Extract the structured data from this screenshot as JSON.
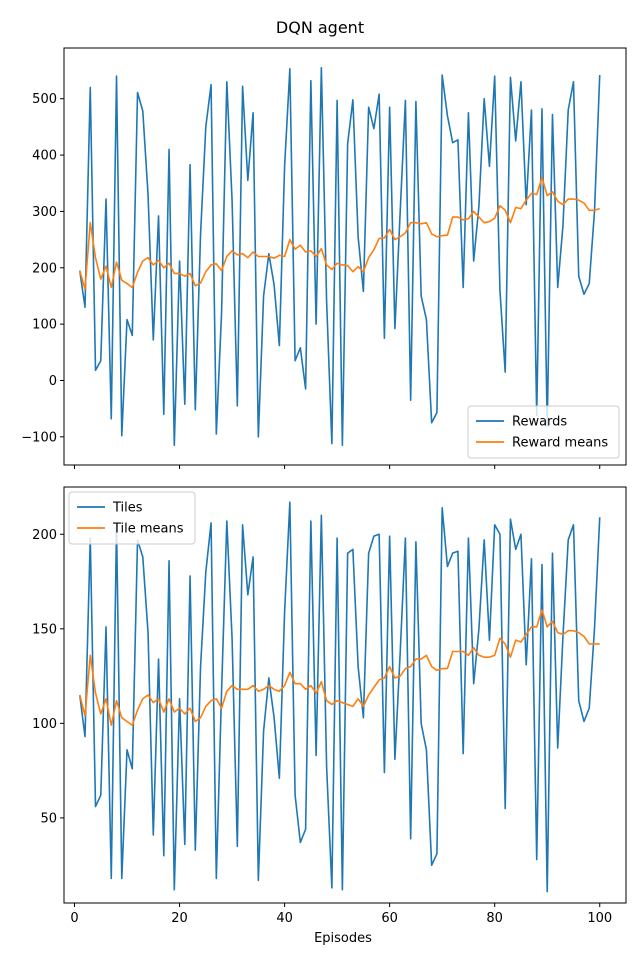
{
  "title": "DQN agent",
  "xlabel": "Episodes",
  "colors": {
    "series1": "#1f77b4",
    "series2": "#ff7f0e"
  },
  "chart_data": [
    {
      "type": "line",
      "xlim": [
        -2,
        105
      ],
      "ylim": [
        -150,
        590
      ],
      "xticks": [
        0,
        20,
        40,
        60,
        80,
        100
      ],
      "yticks": [
        -100,
        0,
        100,
        200,
        300,
        400,
        500
      ],
      "show_xtick_labels": false,
      "legend_position": "lower-right",
      "series": [
        {
          "name": "Rewards",
          "x": [
            1,
            2,
            3,
            4,
            5,
            6,
            7,
            8,
            9,
            10,
            11,
            12,
            13,
            14,
            15,
            16,
            17,
            18,
            19,
            20,
            21,
            22,
            23,
            24,
            25,
            26,
            27,
            28,
            29,
            30,
            31,
            32,
            33,
            34,
            35,
            36,
            37,
            38,
            39,
            40,
            41,
            42,
            43,
            44,
            45,
            46,
            47,
            48,
            49,
            50,
            51,
            52,
            53,
            54,
            55,
            56,
            57,
            58,
            59,
            60,
            61,
            62,
            63,
            64,
            65,
            66,
            67,
            68,
            69,
            70,
            71,
            72,
            73,
            74,
            75,
            76,
            77,
            78,
            79,
            80,
            81,
            82,
            83,
            84,
            85,
            86,
            87,
            88,
            89,
            90,
            91,
            92,
            93,
            94,
            95,
            96,
            97,
            98,
            99,
            100
          ],
          "values": [
            195,
            130,
            520,
            18,
            35,
            322,
            -68,
            540,
            -98,
            108,
            80,
            511,
            478,
            330,
            72,
            292,
            -60,
            410,
            -115,
            212,
            -42,
            383,
            -52,
            260,
            450,
            525,
            -95,
            120,
            530,
            320,
            -45,
            522,
            355,
            475,
            -100,
            150,
            225,
            170,
            62,
            380,
            553,
            35,
            58,
            -15,
            532,
            100,
            555,
            140,
            -112,
            497,
            -115,
            420,
            498,
            255,
            158,
            485,
            447,
            508,
            75,
            485,
            92,
            298,
            497,
            -35,
            495,
            150,
            108,
            -75,
            -57,
            542,
            470,
            422,
            427,
            165,
            475,
            212,
            310,
            500,
            380,
            540,
            160,
            15,
            538,
            425,
            530,
            312,
            480,
            -62,
            482,
            -82,
            472,
            165,
            275,
            480,
            530,
            185,
            153,
            172,
            300,
            542
          ]
        },
        {
          "name": "Reward means",
          "x": [
            1,
            2,
            3,
            4,
            5,
            6,
            7,
            8,
            9,
            10,
            11,
            12,
            13,
            14,
            15,
            16,
            17,
            18,
            19,
            20,
            21,
            22,
            23,
            24,
            25,
            26,
            27,
            28,
            29,
            30,
            31,
            32,
            33,
            34,
            35,
            36,
            37,
            38,
            39,
            40,
            41,
            42,
            43,
            44,
            45,
            46,
            47,
            48,
            49,
            50,
            51,
            52,
            53,
            54,
            55,
            56,
            57,
            58,
            59,
            60,
            61,
            62,
            63,
            64,
            65,
            66,
            67,
            68,
            69,
            70,
            71,
            72,
            73,
            74,
            75,
            76,
            77,
            78,
            79,
            80,
            81,
            82,
            83,
            84,
            85,
            86,
            87,
            88,
            89,
            90,
            91,
            92,
            93,
            94,
            95,
            96,
            97,
            98,
            99,
            100
          ],
          "values": [
            195,
            162,
            280,
            218,
            180,
            203,
            165,
            210,
            178,
            172,
            165,
            192,
            212,
            218,
            205,
            213,
            200,
            208,
            190,
            190,
            185,
            190,
            168,
            173,
            193,
            205,
            207,
            195,
            220,
            230,
            223,
            225,
            218,
            228,
            220,
            220,
            220,
            217,
            222,
            220,
            250,
            233,
            240,
            228,
            230,
            220,
            234,
            205,
            197,
            208,
            205,
            204,
            193,
            202,
            193,
            218,
            232,
            252,
            253,
            268,
            250,
            255,
            262,
            280,
            280,
            278,
            280,
            260,
            255,
            257,
            258,
            290,
            290,
            285,
            287,
            300,
            290,
            280,
            282,
            288,
            310,
            302,
            280,
            307,
            305,
            320,
            332,
            330,
            360,
            328,
            335,
            318,
            312,
            322,
            322,
            320,
            315,
            302,
            302,
            305
          ]
        }
      ]
    },
    {
      "type": "line",
      "xlim": [
        -2,
        105
      ],
      "ylim": [
        5,
        225
      ],
      "xticks": [
        0,
        20,
        40,
        60,
        80,
        100
      ],
      "yticks": [
        50,
        100,
        150,
        200
      ],
      "show_xtick_labels": true,
      "legend_position": "upper-left",
      "series": [
        {
          "name": "Tiles",
          "x": [
            1,
            2,
            3,
            4,
            5,
            6,
            7,
            8,
            9,
            10,
            11,
            12,
            13,
            14,
            15,
            16,
            17,
            18,
            19,
            20,
            21,
            22,
            23,
            24,
            25,
            26,
            27,
            28,
            29,
            30,
            31,
            32,
            33,
            34,
            35,
            36,
            37,
            38,
            39,
            40,
            41,
            42,
            43,
            44,
            45,
            46,
            47,
            48,
            49,
            50,
            51,
            52,
            53,
            54,
            55,
            56,
            57,
            58,
            59,
            60,
            61,
            62,
            63,
            64,
            65,
            66,
            67,
            68,
            69,
            70,
            71,
            72,
            73,
            74,
            75,
            76,
            77,
            78,
            79,
            80,
            81,
            82,
            83,
            84,
            85,
            86,
            87,
            88,
            89,
            90,
            91,
            92,
            93,
            94,
            95,
            96,
            97,
            98,
            99,
            100
          ],
          "values": [
            115,
            93,
            198,
            56,
            62,
            151,
            18,
            205,
            18,
            86,
            76,
            197,
            188,
            148,
            41,
            134,
            30,
            186,
            12,
            113,
            36,
            178,
            33,
            130,
            180,
            206,
            18,
            117,
            207,
            145,
            35,
            205,
            168,
            188,
            17,
            96,
            124,
            103,
            71,
            159,
            217,
            62,
            37,
            44,
            207,
            83,
            210,
            77,
            13,
            198,
            12,
            190,
            192,
            130,
            103,
            190,
            199,
            200,
            74,
            199,
            81,
            137,
            198,
            39,
            196,
            100,
            86,
            25,
            31,
            214,
            183,
            190,
            191,
            84,
            198,
            121,
            150,
            197,
            144,
            205,
            200,
            55,
            208,
            192,
            200,
            131,
            187,
            28,
            184,
            11,
            190,
            87,
            146,
            197,
            205,
            112,
            101,
            108,
            150,
            209
          ]
        },
        {
          "name": "Tile means",
          "x": [
            1,
            2,
            3,
            4,
            5,
            6,
            7,
            8,
            9,
            10,
            11,
            12,
            13,
            14,
            15,
            16,
            17,
            18,
            19,
            20,
            21,
            22,
            23,
            24,
            25,
            26,
            27,
            28,
            29,
            30,
            31,
            32,
            33,
            34,
            35,
            36,
            37,
            38,
            39,
            40,
            41,
            42,
            43,
            44,
            45,
            46,
            47,
            48,
            49,
            50,
            51,
            52,
            53,
            54,
            55,
            56,
            57,
            58,
            59,
            60,
            61,
            62,
            63,
            64,
            65,
            66,
            67,
            68,
            69,
            70,
            71,
            72,
            73,
            74,
            75,
            76,
            77,
            78,
            79,
            80,
            81,
            82,
            83,
            84,
            85,
            86,
            87,
            88,
            89,
            90,
            91,
            92,
            93,
            94,
            95,
            96,
            97,
            98,
            99,
            100
          ],
          "values": [
            115,
            104,
            136,
            116,
            105,
            113,
            99,
            112,
            103,
            101,
            99,
            107,
            113,
            115,
            111,
            113,
            106,
            113,
            106,
            108,
            105,
            108,
            101,
            103,
            109,
            112,
            113,
            108,
            117,
            120,
            118,
            118,
            118,
            120,
            117,
            118,
            120,
            118,
            117,
            120,
            127,
            121,
            121,
            118,
            120,
            116,
            122,
            112,
            110,
            112,
            111,
            110,
            109,
            113,
            109,
            115,
            119,
            123,
            124,
            130,
            124,
            125,
            129,
            130,
            134,
            134,
            136,
            130,
            128,
            129,
            129,
            138,
            138,
            138,
            136,
            140,
            136,
            135,
            135,
            136,
            145,
            142,
            135,
            144,
            143,
            147,
            151,
            151,
            160,
            151,
            154,
            148,
            147,
            149,
            149,
            148,
            146,
            142,
            142,
            142
          ]
        }
      ]
    }
  ]
}
